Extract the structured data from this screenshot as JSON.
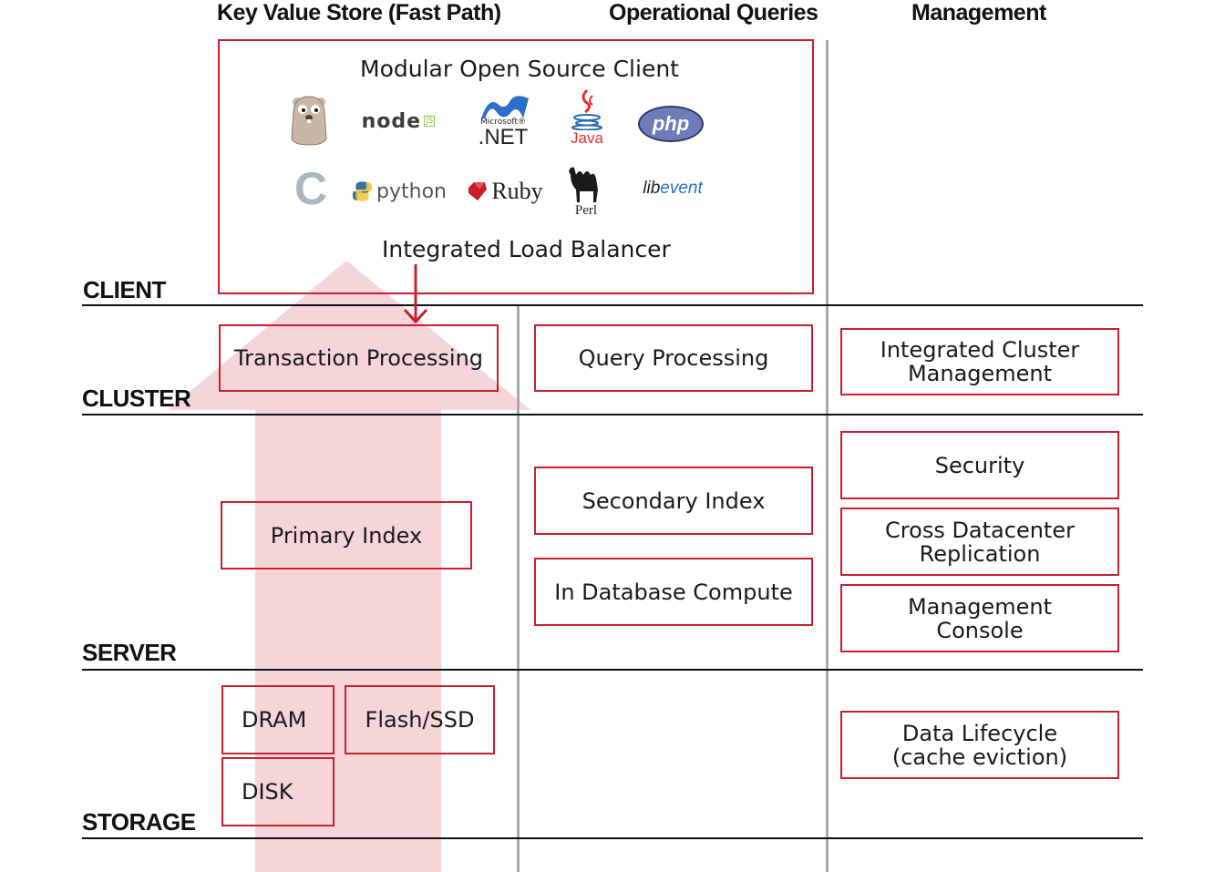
{
  "columns": {
    "kv": "Key Value Store (Fast Path)",
    "ops": "Operational Queries",
    "mgmt": "Management"
  },
  "tiers": {
    "client": "CLIENT",
    "cluster": "CLUSTER",
    "server": "SERVER",
    "storage": "STORAGE"
  },
  "client": {
    "title": "Modular Open Source Client",
    "load_balancer": "Integrated Load Balancer",
    "logos": {
      "nodejs": "node",
      "nodejs_badge": "JS",
      "dotnet_small": "Microsoft®",
      "dotnet": ".NET",
      "java": "Java",
      "php": "php",
      "c": "C",
      "python": "python",
      "ruby": "Ruby",
      "perl": "Perl",
      "libevent_prefix": "lib",
      "libevent_suffix": "event"
    }
  },
  "boxes": {
    "transaction_processing": "Transaction Processing",
    "query_processing": "Query Processing",
    "integrated_cluster_management": "Integrated Cluster\nManagement",
    "primary_index": "Primary Index",
    "secondary_index": "Secondary Index",
    "in_database_compute": "In Database Compute",
    "security": "Security",
    "cross_datacenter_replication": "Cross Datacenter\nReplication",
    "management_console": "Management\nConsole",
    "dram": "DRAM",
    "flash_ssd": "Flash/SSD",
    "disk": "DISK",
    "data_lifecycle": "Data Lifecycle\n(cache eviction)"
  },
  "colors": {
    "accent_red": "#c8202f",
    "fast_path_arrow": "#f5d3d6",
    "divider_gray": "#a9a9a9",
    "tier_line": "#111111"
  }
}
